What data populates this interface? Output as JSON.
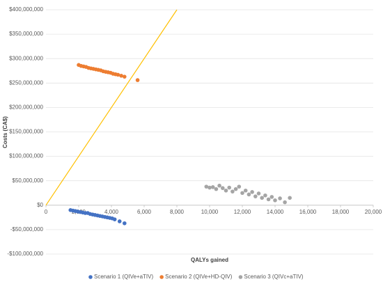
{
  "chart_data": {
    "type": "scatter",
    "x_label": "QALYs gained",
    "y_label": "Costs (CA$)",
    "xlim": [
      0,
      20000
    ],
    "ylim": [
      -100000000,
      400000000
    ],
    "xticks": [
      0,
      {
        "value": 2000,
        "label": "2,000"
      },
      {
        "value": 4000,
        "label": "4,000"
      },
      {
        "value": 6000,
        "label": "6,000"
      },
      {
        "value": 8000,
        "label": "8,000"
      },
      {
        "value": 10000,
        "label": "10,000"
      },
      {
        "value": 12000,
        "label": "12,000"
      },
      {
        "value": 14000,
        "label": "14,000"
      },
      {
        "value": 16000,
        "label": "16,000"
      },
      {
        "value": 18000,
        "label": "18,000"
      },
      {
        "value": 20000,
        "label": "20,000"
      }
    ],
    "yticks": [
      {
        "value": -100000000,
        "label": "-$100,000,000"
      },
      {
        "value": -50000000,
        "label": "-$50,000,000"
      },
      {
        "value": 0,
        "label": "$0"
      },
      {
        "value": 50000000,
        "label": "$50,000,000"
      },
      {
        "value": 100000000,
        "label": "$100,000,000"
      },
      {
        "value": 150000000,
        "label": "$150,000,000"
      },
      {
        "value": 200000000,
        "label": "$200,000,000"
      },
      {
        "value": 250000000,
        "label": "$250,000,000"
      },
      {
        "value": 300000000,
        "label": "$300,000,000"
      },
      {
        "value": 350000000,
        "label": "$350,000,000"
      },
      {
        "value": 400000000,
        "label": "$400,000,000"
      }
    ],
    "grid": true,
    "legend": "bottom",
    "reference_line": {
      "color": "#ffc000",
      "x": [
        0,
        8000
      ],
      "y": [
        0,
        400000000
      ]
    },
    "series": [
      {
        "name": "Scenario 1 (QIVe+aTIV)",
        "color": "#4472c4",
        "x": [
          1500,
          1650,
          1800,
          1950,
          2100,
          2250,
          2400,
          2550,
          2700,
          2850,
          3000,
          3150,
          3300,
          3450,
          3600,
          3750,
          3900,
          4050,
          4200,
          4500,
          4800
        ],
        "values": [
          -10000000,
          -11000000,
          -12000000,
          -13000000,
          -14000000,
          -15000000,
          -16000000,
          -16000000,
          -18000000,
          -19000000,
          -20000000,
          -21000000,
          -22000000,
          -23000000,
          -24000000,
          -25000000,
          -26000000,
          -27000000,
          -29000000,
          -33000000,
          -37000000
        ]
      },
      {
        "name": "Scenario 2 (QIVe+HD-QIV)",
        "color": "#ed7d31",
        "x": [
          2000,
          2150,
          2300,
          2450,
          2600,
          2750,
          2900,
          3050,
          3200,
          3350,
          3500,
          3650,
          3800,
          3950,
          4100,
          4250,
          4400,
          4600,
          4800,
          5600
        ],
        "values": [
          287000000,
          285000000,
          284000000,
          283000000,
          281000000,
          280000000,
          279000000,
          278000000,
          277000000,
          276000000,
          274000000,
          273000000,
          272000000,
          271000000,
          269000000,
          268000000,
          267000000,
          265000000,
          263000000,
          256000000
        ]
      },
      {
        "name": "Scenario 3 (QIVc+aTIV)",
        "color": "#a5a5a5",
        "x": [
          9800,
          10000,
          10200,
          10400,
          10600,
          10800,
          11000,
          11200,
          11400,
          11600,
          11800,
          12000,
          12200,
          12400,
          12600,
          12800,
          13000,
          13200,
          13400,
          13600,
          13800,
          14000,
          14300,
          14600,
          14900
        ],
        "values": [
          38000000,
          36000000,
          37000000,
          33000000,
          40000000,
          35000000,
          30000000,
          36000000,
          28000000,
          33000000,
          38000000,
          25000000,
          30000000,
          22000000,
          27000000,
          18000000,
          24000000,
          15000000,
          20000000,
          12000000,
          17000000,
          10000000,
          14000000,
          6000000,
          15000000
        ]
      }
    ]
  }
}
